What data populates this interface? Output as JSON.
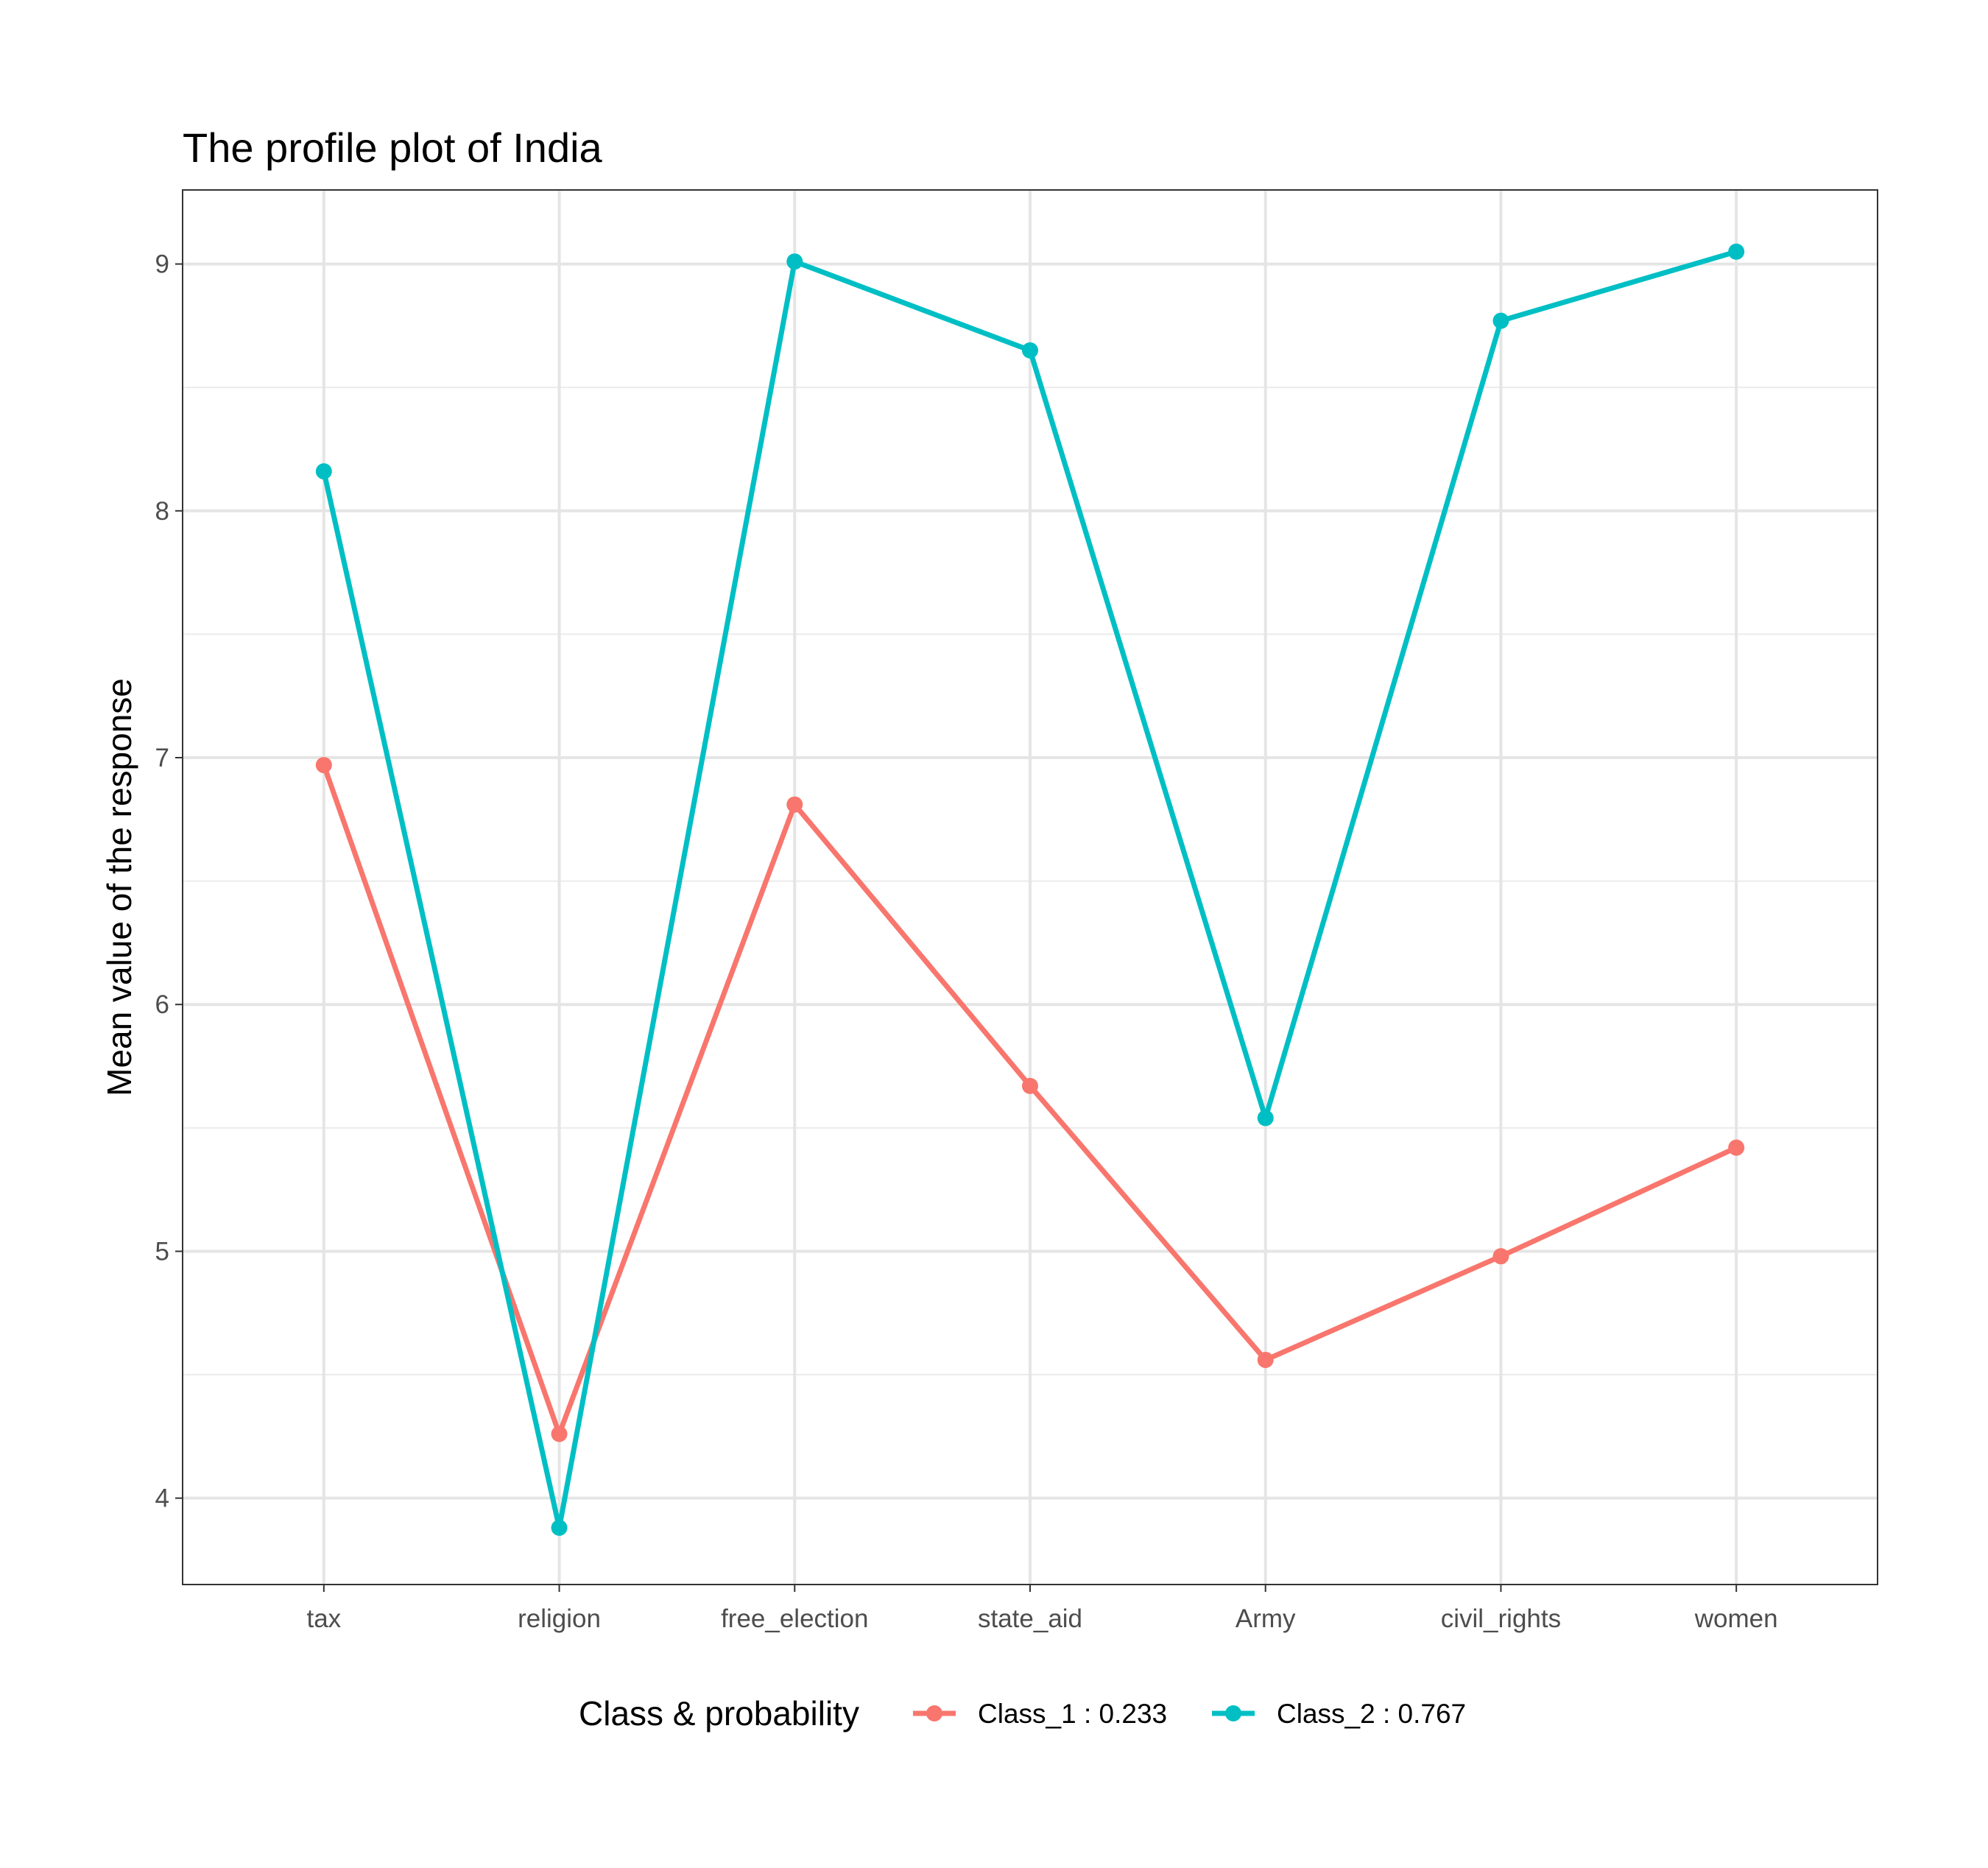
{
  "chart_data": {
    "type": "line",
    "title": "The profile plot of India",
    "xlabel": "",
    "ylabel": "Mean value of the response",
    "categories": [
      "tax",
      "religion",
      "free_election",
      "state_aid",
      "Army",
      "civil_rights",
      "women"
    ],
    "ylim": [
      3.65,
      9.3
    ],
    "yticks": [
      "4",
      "5",
      "6",
      "7",
      "8",
      "9"
    ],
    "grid": true,
    "legend": {
      "title": "Class & probability",
      "position": "bottom"
    },
    "series": [
      {
        "name": "Class_1 : 0.233",
        "color": "#F8766D",
        "values": [
          6.97,
          4.26,
          6.81,
          5.67,
          4.56,
          4.98,
          5.42
        ]
      },
      {
        "name": "Class_2 : 0.767",
        "color": "#00BFC4",
        "values": [
          8.16,
          3.88,
          9.01,
          8.65,
          5.54,
          8.77,
          9.05
        ]
      }
    ]
  }
}
